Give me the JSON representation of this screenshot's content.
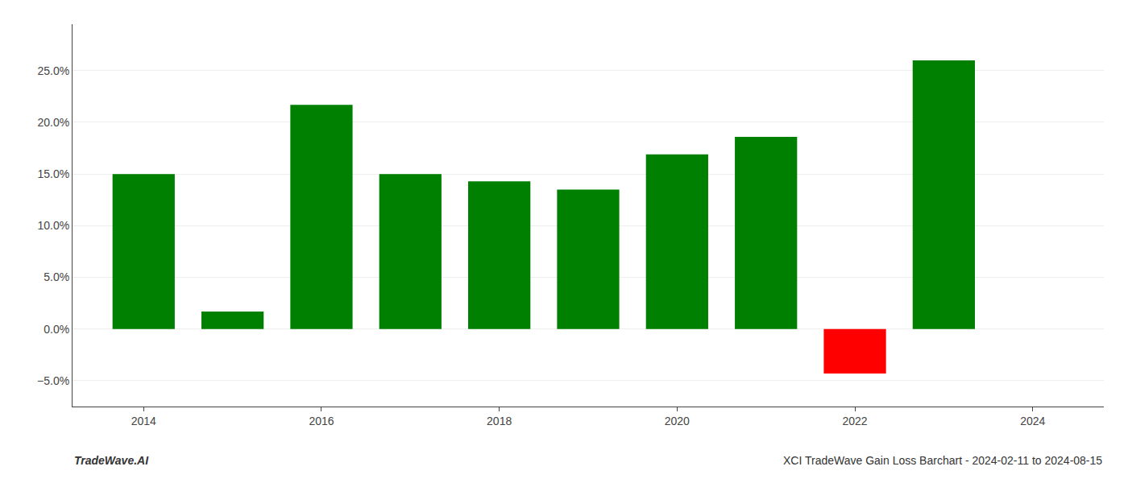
{
  "chart_data": {
    "type": "bar",
    "x": [
      2014,
      2015,
      2016,
      2017,
      2018,
      2019,
      2020,
      2021,
      2022,
      2023
    ],
    "values": [
      0.15,
      0.017,
      0.217,
      0.15,
      0.143,
      0.135,
      0.169,
      0.186,
      -0.043,
      0.26
    ],
    "colors": [
      "#008000",
      "#008000",
      "#008000",
      "#008000",
      "#008000",
      "#008000",
      "#008000",
      "#008000",
      "#ff0000",
      "#008000"
    ],
    "xlim": [
      2013.2,
      2024.8
    ],
    "xticks": [
      2014,
      2016,
      2018,
      2020,
      2022,
      2024
    ],
    "ylim": [
      -0.075,
      0.295
    ],
    "yticks": [
      {
        "value": -0.05,
        "label": "−5.0%"
      },
      {
        "value": 0.0,
        "label": "0.0%"
      },
      {
        "value": 0.05,
        "label": "5.0%"
      },
      {
        "value": 0.1,
        "label": "10.0%"
      },
      {
        "value": 0.15,
        "label": "15.0%"
      },
      {
        "value": 0.2,
        "label": "20.0%"
      },
      {
        "value": 0.25,
        "label": "25.0%"
      }
    ],
    "grid": true,
    "annotations": [
      "TradeWave.AI",
      "XCI TradeWave Gain Loss Barchart - 2024-02-11 to 2024-08-15"
    ]
  }
}
